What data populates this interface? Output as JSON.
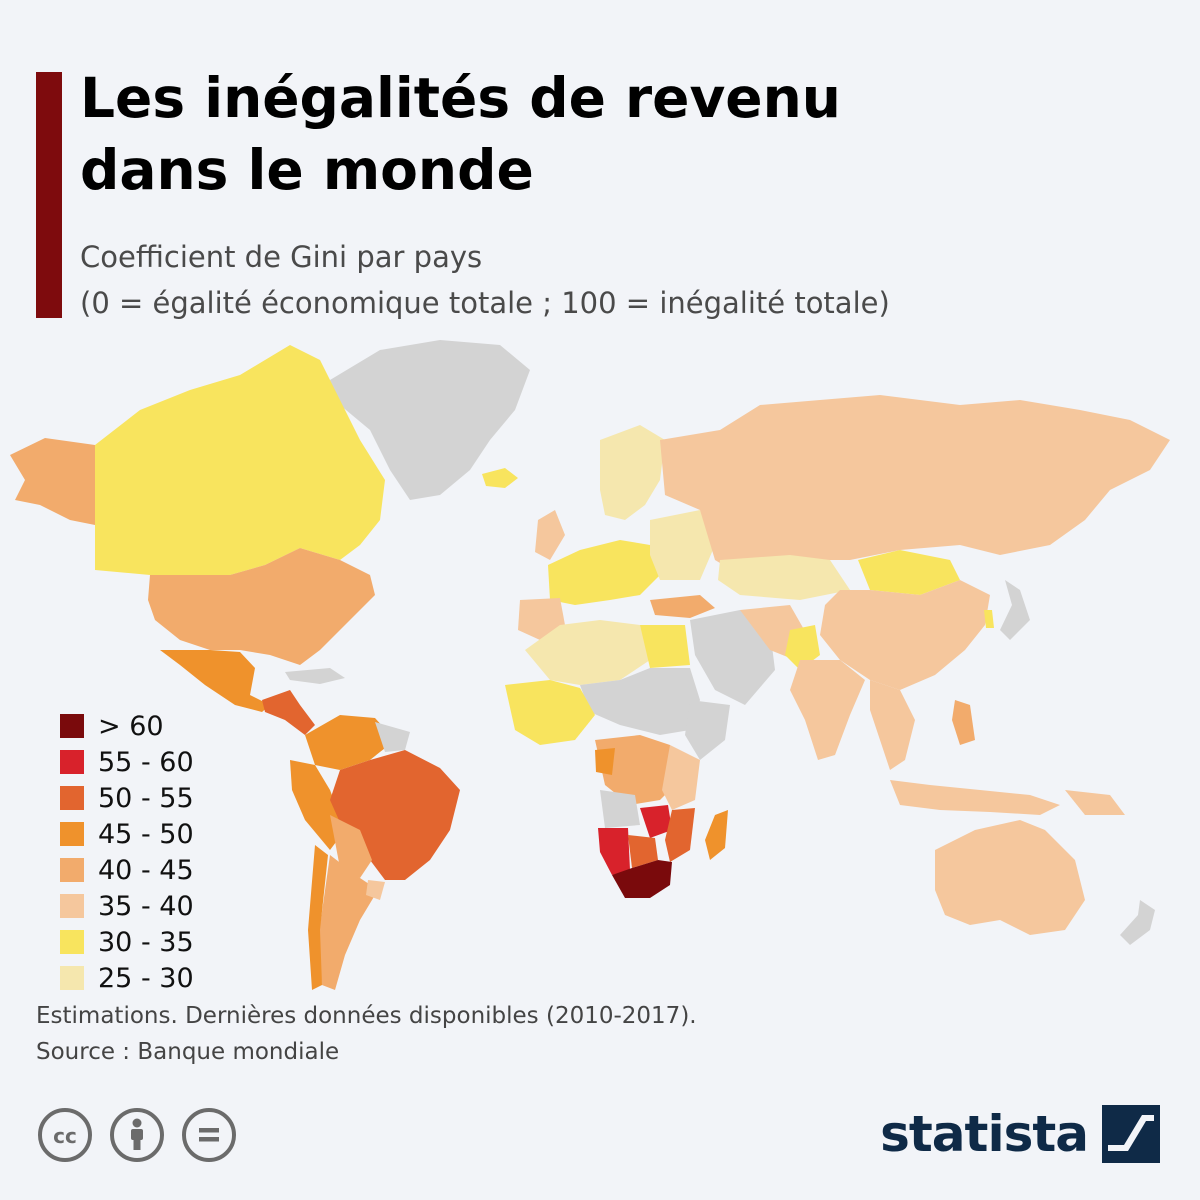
{
  "header": {
    "title_line1": "Les inégalités de revenu",
    "title_line2": "dans le monde",
    "subtitle_line1": "Coefficient de Gini par pays",
    "subtitle_line2": "(0 = égalité économique totale ; 100 = inégalité totale)"
  },
  "legend": [
    {
      "label": "> 60",
      "color": "#7a0a0c"
    },
    {
      "label": "55 - 60",
      "color": "#d8222b"
    },
    {
      "label": "50 - 55",
      "color": "#e2652f"
    },
    {
      "label": "45 - 50",
      "color": "#ef922c"
    },
    {
      "label": "40 - 45",
      "color": "#f2ab6c"
    },
    {
      "label": "35 - 40",
      "color": "#f5c79d"
    },
    {
      "label": "30 - 35",
      "color": "#f8e45e"
    },
    {
      "label": "25 - 30",
      "color": "#f5e7ae"
    }
  ],
  "colors": {
    "no_data": "#d3d3d3",
    "accent": "#7e0b0d",
    "brand": "#0f2a47",
    "background": "#f2f4f8"
  },
  "footer": {
    "note": "Estimations. Dernières données disponibles (2010-2017).",
    "source": "Source : Banque mondiale"
  },
  "license_icons": [
    "cc-icon",
    "attribution-icon",
    "no-derivatives-icon"
  ],
  "brand": {
    "name": "statista"
  }
}
